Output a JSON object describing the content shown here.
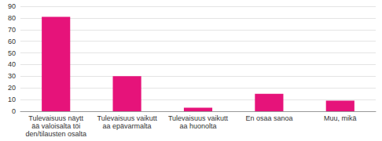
{
  "chart_data": {
    "type": "bar",
    "categories": [
      "Tulevaisuus näyttää valoisalta töiden/tilausten osalta",
      "Tulevaisuus vaikuttaa epävarmalta",
      "Tulevaisuus vaikuttaa huonolta",
      "En osaa sanoa",
      "Muu, mikä"
    ],
    "values": [
      81,
      30,
      3,
      15,
      9
    ],
    "color": "#e6137a",
    "ylim": [
      0,
      90
    ],
    "yticks": [
      0,
      10,
      20,
      30,
      40,
      50,
      60,
      70,
      80,
      90
    ],
    "grid": true
  }
}
